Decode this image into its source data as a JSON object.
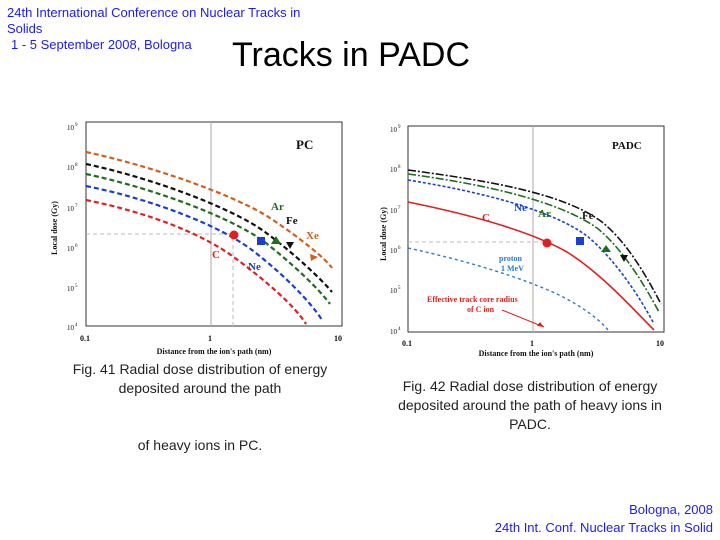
{
  "header": {
    "line1": "24th International Conference on Nuclear Tracks in",
    "line2": "Solids",
    "line3": "1 - 5 September 2008, Bologna"
  },
  "title": "Tracks in PADC",
  "figures": [
    {
      "id": "fig41",
      "label": "PC",
      "x_label": "Distance from the ion's path (nm)",
      "y_label": "Local dose (Gy)",
      "x_ticks": [
        "0.1",
        "1",
        "10"
      ],
      "y_ticks": [
        "10",
        "10",
        "10",
        "10",
        "10",
        "10"
      ],
      "y_tick_exponents": [
        "9",
        "8",
        "7",
        "6",
        "5",
        "4"
      ],
      "ion_labels": [
        "Ar",
        "Fe",
        "Xe",
        "C",
        "Ne"
      ],
      "colors": {
        "C": "#e02020",
        "Ne": "#1a3fcf",
        "Ar": "#1e6e1e",
        "Fe": "#111111",
        "Xe": "#d06020"
      }
    },
    {
      "id": "fig42",
      "label": "PADC",
      "x_label": "Distance from the ion's path (nm)",
      "y_label": "Local dose (Gy)",
      "x_ticks": [
        "0.1",
        "1",
        "10"
      ],
      "y_ticks": [
        "10",
        "10",
        "10",
        "10",
        "10",
        "10"
      ],
      "y_tick_exponents": [
        "9",
        "8",
        "7",
        "6",
        "5",
        "4"
      ],
      "ion_labels": [
        "Ne",
        "Ar",
        "Fe",
        "C"
      ],
      "proton_label": [
        "proton",
        "1 MeV"
      ],
      "effective_label": [
        "Effective track core radius",
        "of C ion"
      ],
      "colors": {
        "C": "#e02020",
        "Ne": "#1a3fcf",
        "Ar": "#1e6e1e",
        "Fe": "#111111",
        "proton": "#2a7ad0"
      }
    }
  ],
  "captions": {
    "left_line1": "Fig. 41 Radial dose distribution of energy deposited around the path",
    "left_line2": "of heavy ions in PC.",
    "right": "Fig. 42 Radial dose distribution of energy deposited around the path of heavy ions in PADC."
  },
  "footer": {
    "line1": "Bologna, 2008",
    "line2": "24th Int. Conf. Nuclear Tracks in Solid"
  }
}
